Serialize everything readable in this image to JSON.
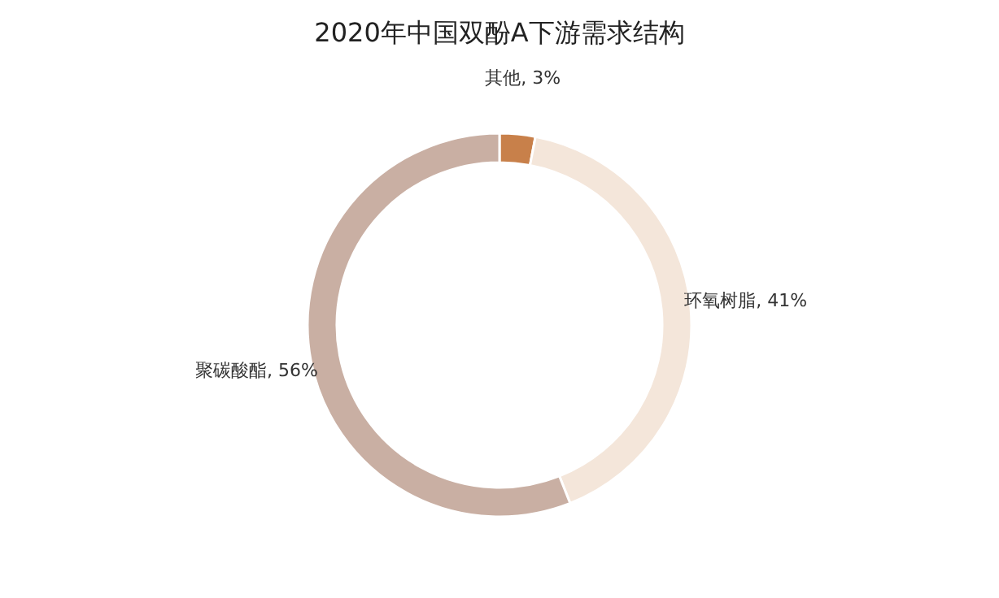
{
  "chart_data": {
    "type": "donut",
    "title": "2020年中国双酚A下游需求结构",
    "categories": [
      "其他",
      "环氧树脂",
      "聚碳酸酯"
    ],
    "values": [
      3,
      41,
      56
    ],
    "value_labels": [
      "3%",
      "41%",
      "56%"
    ],
    "colors": [
      "#c8804a",
      "#f4e6da",
      "#c9afa3"
    ]
  }
}
